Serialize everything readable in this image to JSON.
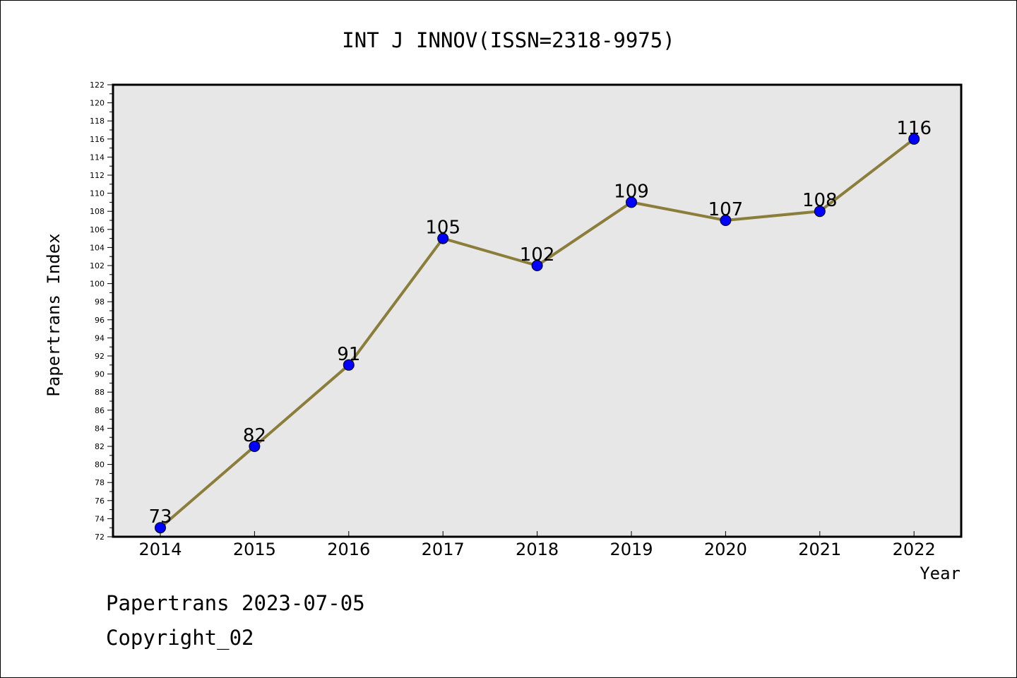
{
  "chart_data": {
    "type": "line",
    "title": "INT J INNOV(ISSN=2318-9975)",
    "xlabel": "Year",
    "ylabel": "Papertrans Index",
    "x": [
      "2014",
      "2015",
      "2016",
      "2017",
      "2018",
      "2019",
      "2020",
      "2021",
      "2022"
    ],
    "values": [
      73,
      82,
      91,
      105,
      102,
      109,
      107,
      108,
      116
    ],
    "data_labels": [
      "73",
      "82",
      "91",
      "105",
      "102",
      "109",
      "107",
      "108",
      "116"
    ],
    "ylim": [
      72,
      122
    ],
    "yticks": [
      "72",
      "74",
      "76",
      "78",
      "80",
      "82",
      "84",
      "86",
      "88",
      "90",
      "92",
      "94",
      "96",
      "98",
      "100",
      "102",
      "104",
      "106",
      "108",
      "110",
      "112",
      "114",
      "116",
      "118",
      "120",
      "122"
    ],
    "grid": false,
    "line_color": "#8b7d3a",
    "marker_color": "#0000ff",
    "plot_background": "#e7e7e7"
  },
  "footer": {
    "line1": "Papertrans 2023-07-05",
    "line2": "Copyright_02"
  }
}
